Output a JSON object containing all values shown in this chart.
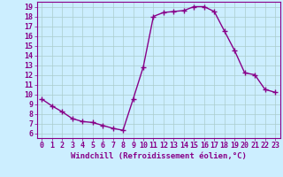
{
  "x": [
    0,
    1,
    2,
    3,
    4,
    5,
    6,
    7,
    8,
    9,
    10,
    11,
    12,
    13,
    14,
    15,
    16,
    17,
    18,
    19,
    20,
    21,
    22,
    23
  ],
  "y": [
    9.5,
    8.8,
    8.2,
    7.5,
    7.2,
    7.1,
    6.8,
    6.5,
    6.3,
    9.5,
    12.8,
    18.0,
    18.4,
    18.5,
    18.6,
    19.0,
    19.0,
    18.5,
    16.5,
    14.5,
    12.2,
    12.0,
    10.5,
    10.2
  ],
  "line_color": "#880088",
  "marker": "+",
  "markersize": 4,
  "linewidth": 1.0,
  "xlabel": "Windchill (Refroidissement éolien,°C)",
  "xlabel_fontsize": 6.5,
  "bg_color": "#cceeff",
  "grid_color": "#aacccc",
  "xlim": [
    -0.5,
    23.5
  ],
  "ylim": [
    5.5,
    19.5
  ],
  "yticks": [
    6,
    7,
    8,
    9,
    10,
    11,
    12,
    13,
    14,
    15,
    16,
    17,
    18,
    19
  ],
  "xticks": [
    0,
    1,
    2,
    3,
    4,
    5,
    6,
    7,
    8,
    9,
    10,
    11,
    12,
    13,
    14,
    15,
    16,
    17,
    18,
    19,
    20,
    21,
    22,
    23
  ],
  "tick_fontsize": 6,
  "spine_color": "#880088",
  "tick_color": "#880088"
}
